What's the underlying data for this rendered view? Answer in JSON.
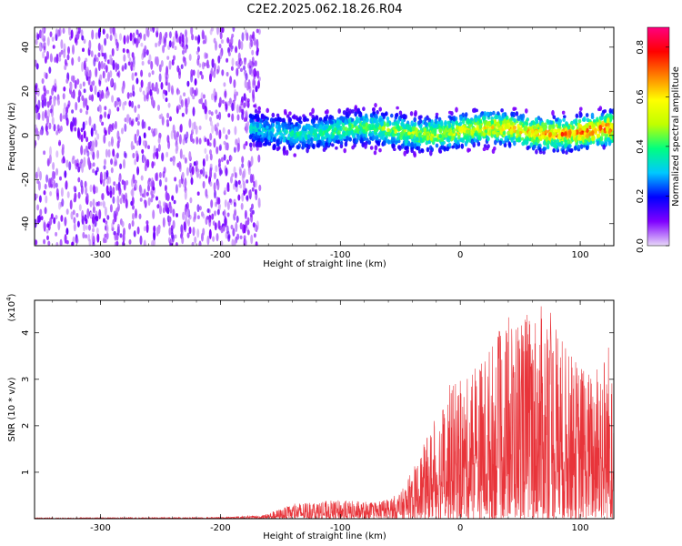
{
  "title": "C2E2.2025.062.18.26.R04",
  "chart_data": [
    {
      "type": "heatmap",
      "xlabel": "Height of straight line (km)",
      "ylabel": "Frequency (Hz)",
      "xlim": [
        -355,
        128
      ],
      "ylim": [
        -50,
        49
      ],
      "xticks": [
        -300,
        -200,
        -100,
        0,
        100
      ],
      "yticks": [
        -40,
        -20,
        0,
        20,
        40
      ],
      "colorbar": {
        "label": "Normalized spectral amplitude",
        "range": [
          0,
          0.88
        ],
        "ticks": [
          "0.0",
          "0.2",
          "0.4",
          "0.6",
          "0.8"
        ],
        "tick_values": [
          0,
          0.2,
          0.4,
          0.6,
          0.8
        ],
        "colormap": [
          "#e8d8f8",
          "#8000ff",
          "#0000ff",
          "#00c8ff",
          "#00ff80",
          "#c0ff00",
          "#ffff00",
          "#ff8000",
          "#ff0000",
          "#ff0080"
        ]
      },
      "regions": [
        {
          "x_range": [
            -355,
            -175
          ],
          "y_range": [
            -50,
            49
          ],
          "amplitude_range": [
            0.02,
            0.12
          ],
          "description": "broadband noise"
        },
        {
          "x_range": [
            -175,
            128
          ],
          "center_freq": 2,
          "half_width": 12,
          "amplitude_range": [
            0.1,
            0.85
          ]
        }
      ]
    },
    {
      "type": "line",
      "xlabel": "Height of straight line (km)",
      "ylabel": "SNR (10 * v/v)",
      "y_multiplier": "(x10",
      "y_multiplier_exp": "4",
      "y_multiplier_close": ")",
      "xlim": [
        -355,
        128
      ],
      "ylim": [
        0,
        4.7
      ],
      "xticks": [
        -300,
        -200,
        -100,
        0,
        100
      ],
      "yticks": [
        1,
        2,
        3,
        4
      ],
      "color": "#e8343a",
      "envelope": [
        {
          "x": -355,
          "y": 0.02
        },
        {
          "x": -200,
          "y": 0.03
        },
        {
          "x": -165,
          "y": 0.08
        },
        {
          "x": -135,
          "y": 0.35
        },
        {
          "x": -100,
          "y": 0.4
        },
        {
          "x": -70,
          "y": 0.35
        },
        {
          "x": -50,
          "y": 0.55
        },
        {
          "x": -35,
          "y": 1.3
        },
        {
          "x": -10,
          "y": 2.9
        },
        {
          "x": 5,
          "y": 3.0
        },
        {
          "x": 25,
          "y": 3.8
        },
        {
          "x": 45,
          "y": 4.5
        },
        {
          "x": 60,
          "y": 4.55
        },
        {
          "x": 75,
          "y": 4.6
        },
        {
          "x": 90,
          "y": 3.6
        },
        {
          "x": 110,
          "y": 3.2
        },
        {
          "x": 125,
          "y": 4.0
        },
        {
          "x": 128,
          "y": 1.9
        }
      ]
    }
  ]
}
